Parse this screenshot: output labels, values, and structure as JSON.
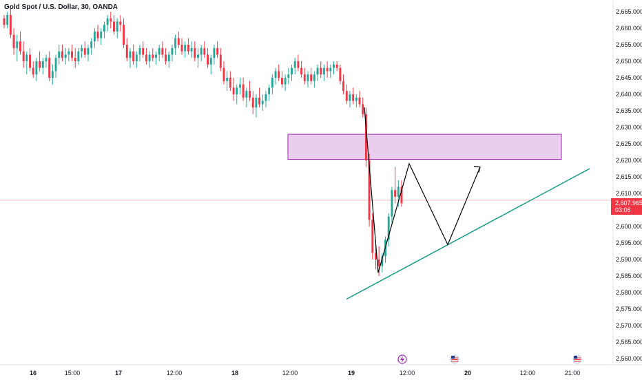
{
  "header": {
    "title": "Gold Spot / U.S. Dollar, 30, OANDA"
  },
  "price_tag": {
    "price": "2,607.965",
    "countdown": "03:06"
  },
  "colors": {
    "up": "#26a69a",
    "down": "#f23645",
    "zone_fill": "#e1bee7",
    "zone_border": "#9c27b0",
    "trendline": "#089981",
    "projection": "#000000",
    "price_line": "#f8bbc0"
  },
  "icons": [
    "lightning-event-icon",
    "us-flag-event-icon",
    "us-flag-event-icon"
  ],
  "chart_data": {
    "type": "candlestick",
    "symbol": "Gold Spot / U.S. Dollar",
    "interval": "30",
    "source": "OANDA",
    "y_axis": {
      "side": "right",
      "ticks": [
        2560,
        2565,
        2570,
        2575,
        2580,
        2585,
        2590,
        2595,
        2600,
        2605,
        2610,
        2615,
        2620,
        2625,
        2630,
        2635,
        2640,
        2645,
        2650,
        2655,
        2660,
        2665
      ],
      "tick_labels": [
        "2,560.000",
        "2,565.000",
        "2,570.000",
        "2,575.000",
        "2,580.000",
        "2,585.000",
        "2,590.000",
        "2,595.000",
        "2,600.000",
        "2,605.000",
        "2,610.000",
        "2,615.000",
        "2,620.000",
        "2,625.000",
        "2,630.000",
        "2,635.000",
        "2,640.000",
        "2,645.000",
        "2,650.000",
        "2,655.000",
        "2,660.000",
        "2,665.000"
      ],
      "ylim": [
        2557.5,
        2668
      ]
    },
    "x_axis": {
      "tick_labels": [
        "16",
        "15:00",
        "17",
        "12:00",
        "18",
        "12:00",
        "19",
        "12:00",
        "20",
        "12:00",
        "21:00"
      ],
      "bold_labels": [
        "16",
        "17",
        "18",
        "19",
        "20"
      ]
    },
    "current_price": 2607.965,
    "candles": [
      [
        2663,
        2664,
        2660,
        2661
      ],
      [
        2661,
        2665,
        2660,
        2664
      ],
      [
        2664,
        2666,
        2657,
        2658
      ],
      [
        2658,
        2660,
        2652,
        2654
      ],
      [
        2654,
        2658,
        2650,
        2656
      ],
      [
        2656,
        2659,
        2652,
        2653
      ],
      [
        2653,
        2656,
        2648,
        2650
      ],
      [
        2650,
        2653,
        2646,
        2652
      ],
      [
        2652,
        2654,
        2647,
        2648
      ],
      [
        2648,
        2650,
        2645,
        2646
      ],
      [
        2646,
        2651,
        2644,
        2650
      ],
      [
        2650,
        2653,
        2647,
        2648
      ],
      [
        2648,
        2651,
        2646,
        2650
      ],
      [
        2650,
        2652,
        2648,
        2651
      ],
      [
        2651,
        2653,
        2644,
        2645
      ],
      [
        2645,
        2649,
        2643,
        2647
      ],
      [
        2647,
        2652,
        2645,
        2651
      ],
      [
        2651,
        2655,
        2649,
        2653
      ],
      [
        2653,
        2655,
        2650,
        2651
      ],
      [
        2651,
        2654,
        2649,
        2652
      ],
      [
        2652,
        2654,
        2650,
        2653
      ],
      [
        2653,
        2655,
        2650,
        2651
      ],
      [
        2651,
        2654,
        2648,
        2650
      ],
      [
        2650,
        2654,
        2649,
        2653
      ],
      [
        2653,
        2655,
        2651,
        2654
      ],
      [
        2654,
        2656,
        2651,
        2652
      ],
      [
        2652,
        2655,
        2650,
        2654
      ],
      [
        2654,
        2657,
        2652,
        2656
      ],
      [
        2656,
        2660,
        2654,
        2659
      ],
      [
        2659,
        2661,
        2656,
        2657
      ],
      [
        2657,
        2660,
        2655,
        2659
      ],
      [
        2659,
        2662,
        2657,
        2661
      ],
      [
        2661,
        2664,
        2659,
        2663
      ],
      [
        2663,
        2665,
        2660,
        2662
      ],
      [
        2662,
        2664,
        2658,
        2659
      ],
      [
        2659,
        2663,
        2657,
        2662
      ],
      [
        2662,
        2664,
        2659,
        2661
      ],
      [
        2661,
        2663,
        2654,
        2655
      ],
      [
        2655,
        2657,
        2650,
        2651
      ],
      [
        2651,
        2654,
        2648,
        2653
      ],
      [
        2653,
        2655,
        2649,
        2650
      ],
      [
        2650,
        2653,
        2648,
        2652
      ],
      [
        2652,
        2655,
        2650,
        2654
      ],
      [
        2654,
        2656,
        2651,
        2652
      ],
      [
        2652,
        2654,
        2649,
        2650
      ],
      [
        2650,
        2653,
        2648,
        2652
      ],
      [
        2652,
        2654,
        2650,
        2651
      ],
      [
        2651,
        2653,
        2649,
        2652
      ],
      [
        2652,
        2655,
        2650,
        2654
      ],
      [
        2654,
        2656,
        2651,
        2652
      ],
      [
        2652,
        2654,
        2649,
        2650
      ],
      [
        2650,
        2653,
        2648,
        2652
      ],
      [
        2652,
        2655,
        2650,
        2654
      ],
      [
        2654,
        2658,
        2652,
        2657
      ],
      [
        2657,
        2659,
        2654,
        2655
      ],
      [
        2655,
        2657,
        2652,
        2653
      ],
      [
        2653,
        2656,
        2651,
        2655
      ],
      [
        2655,
        2657,
        2652,
        2653
      ],
      [
        2653,
        2656,
        2651,
        2654
      ],
      [
        2654,
        2656,
        2650,
        2651
      ],
      [
        2651,
        2654,
        2648,
        2652
      ],
      [
        2652,
        2655,
        2650,
        2654
      ],
      [
        2654,
        2656,
        2651,
        2652
      ],
      [
        2652,
        2654,
        2648,
        2649
      ],
      [
        2649,
        2652,
        2646,
        2651
      ],
      [
        2651,
        2655,
        2649,
        2654
      ],
      [
        2654,
        2656,
        2651,
        2652
      ],
      [
        2652,
        2654,
        2647,
        2648
      ],
      [
        2648,
        2650,
        2643,
        2644
      ],
      [
        2644,
        2647,
        2641,
        2645
      ],
      [
        2645,
        2647,
        2641,
        2642
      ],
      [
        2642,
        2645,
        2638,
        2640
      ],
      [
        2640,
        2643,
        2637,
        2642
      ],
      [
        2642,
        2645,
        2640,
        2643
      ],
      [
        2643,
        2645,
        2638,
        2639
      ],
      [
        2639,
        2642,
        2636,
        2641
      ],
      [
        2641,
        2644,
        2638,
        2639
      ],
      [
        2639,
        2641,
        2634,
        2636
      ],
      [
        2636,
        2640,
        2633,
        2639
      ],
      [
        2639,
        2642,
        2636,
        2637
      ],
      [
        2637,
        2640,
        2635,
        2638
      ],
      [
        2638,
        2641,
        2636,
        2640
      ],
      [
        2640,
        2643,
        2638,
        2642
      ],
      [
        2642,
        2646,
        2640,
        2645
      ],
      [
        2645,
        2648,
        2643,
        2647
      ],
      [
        2647,
        2649,
        2644,
        2645
      ],
      [
        2645,
        2647,
        2642,
        2643
      ],
      [
        2643,
        2646,
        2641,
        2645
      ],
      [
        2645,
        2648,
        2643,
        2646
      ],
      [
        2646,
        2649,
        2644,
        2648
      ],
      [
        2648,
        2651,
        2646,
        2650
      ],
      [
        2650,
        2652,
        2647,
        2648
      ],
      [
        2648,
        2650,
        2645,
        2646
      ],
      [
        2646,
        2648,
        2643,
        2644
      ],
      [
        2644,
        2647,
        2642,
        2646
      ],
      [
        2646,
        2648,
        2643,
        2644
      ],
      [
        2644,
        2647,
        2642,
        2646
      ],
      [
        2646,
        2649,
        2644,
        2648
      ],
      [
        2648,
        2650,
        2645,
        2646
      ],
      [
        2646,
        2649,
        2644,
        2648
      ],
      [
        2648,
        2650,
        2645,
        2647
      ],
      [
        2647,
        2649,
        2645,
        2648
      ],
      [
        2648,
        2650,
        2646,
        2649
      ],
      [
        2649,
        2650,
        2647,
        2648
      ],
      [
        2648,
        2649,
        2643,
        2644
      ],
      [
        2644,
        2646,
        2640,
        2641
      ],
      [
        2641,
        2643,
        2637,
        2638
      ],
      [
        2638,
        2641,
        2636,
        2640
      ],
      [
        2640,
        2642,
        2637,
        2638
      ],
      [
        2638,
        2640,
        2636,
        2639
      ],
      [
        2639,
        2641,
        2636,
        2637
      ],
      [
        2637,
        2639,
        2633,
        2634
      ],
      [
        2634,
        2636,
        2618,
        2620
      ],
      [
        2620,
        2622,
        2600,
        2602
      ],
      [
        2602,
        2604,
        2590,
        2592
      ],
      [
        2592,
        2596,
        2587,
        2590
      ],
      [
        2590,
        2594,
        2585,
        2588
      ],
      [
        2588,
        2592,
        2586,
        2591
      ],
      [
        2591,
        2597,
        2589,
        2596
      ],
      [
        2596,
        2604,
        2594,
        2603
      ],
      [
        2603,
        2612,
        2601,
        2611
      ],
      [
        2611,
        2618,
        2607,
        2609
      ],
      [
        2609,
        2614,
        2606,
        2612
      ],
      [
        2612,
        2614,
        2606,
        2607
      ]
    ],
    "overlays": [
      {
        "type": "rectangle",
        "name": "resistance-zone",
        "price_low": 2620.3,
        "price_high": 2627.9
      },
      {
        "type": "trendline",
        "name": "ascending-support",
        "from_price": 2578,
        "to_price": 2617.5
      },
      {
        "type": "polyline",
        "name": "projection-path",
        "prices": [
          2636,
          2586,
          2619,
          2594.5,
          2618
        ]
      }
    ]
  }
}
